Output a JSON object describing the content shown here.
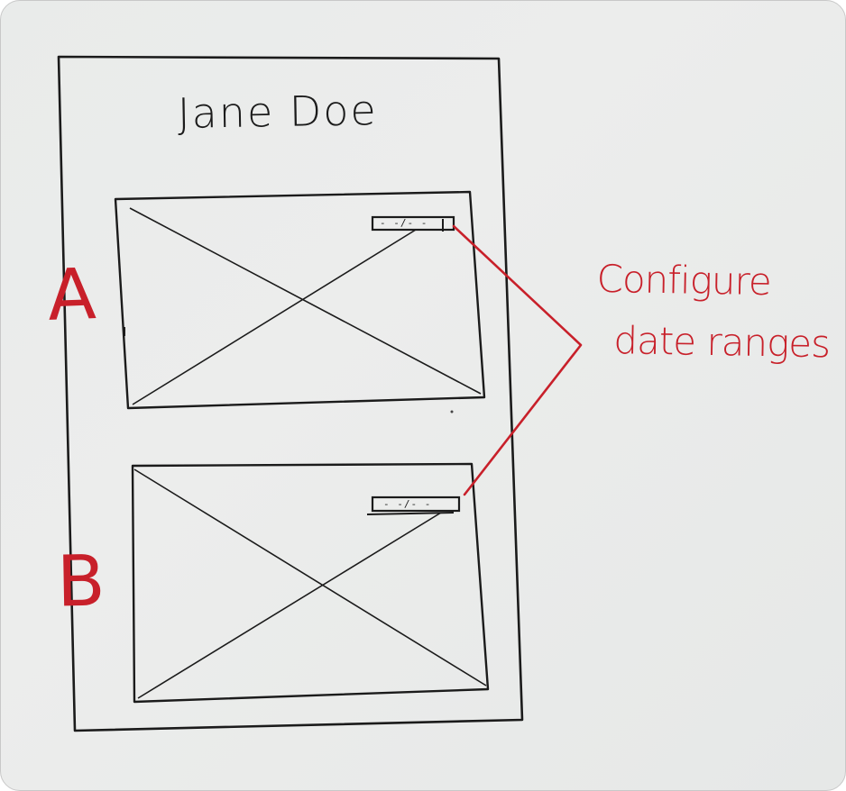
{
  "sketch": {
    "title": "Jane Doe",
    "panels": [
      {
        "label": "A",
        "date_range": "- -/- -"
      },
      {
        "label": "B",
        "date_range": "- -/- -"
      }
    ],
    "annotation": {
      "line1": "Configure",
      "line2": "date ranges"
    }
  },
  "colors": {
    "ink": "#1b1b1b",
    "annotation": "#c8202a",
    "paper": "#eaecea"
  }
}
